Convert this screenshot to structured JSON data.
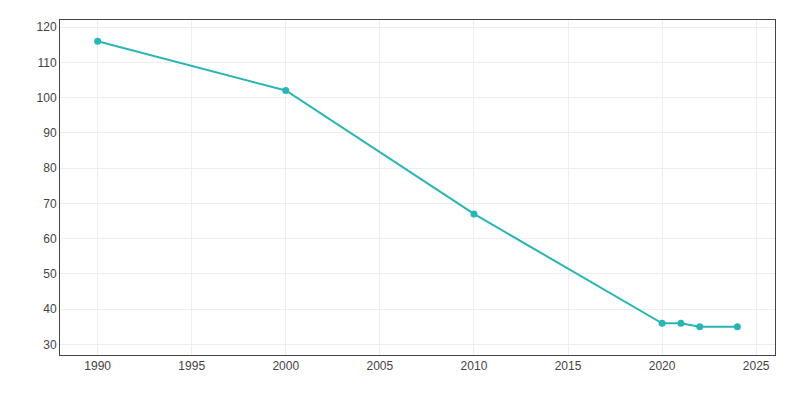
{
  "chart_data": {
    "type": "line",
    "x": [
      1990,
      2000,
      2010,
      2020,
      2021,
      2022,
      2024
    ],
    "values": [
      116,
      102,
      67,
      36,
      36,
      35,
      35
    ],
    "color": "#2ab5b5",
    "marker": "circle",
    "xlim": [
      1988,
      2026
    ],
    "ylim": [
      27,
      122
    ],
    "xticks": [
      1990,
      1995,
      2000,
      2005,
      2010,
      2015,
      2020,
      2025
    ],
    "yticks": [
      30,
      40,
      50,
      60,
      70,
      80,
      90,
      100,
      110,
      120
    ],
    "grid": true
  }
}
